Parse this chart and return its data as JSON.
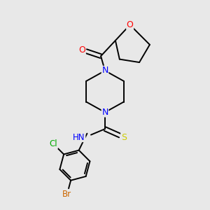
{
  "bg_color": "#e8e8e8",
  "atom_colors": {
    "O": "#ff0000",
    "N": "#0000ff",
    "S": "#cccc00",
    "Cl": "#00aa00",
    "Br": "#cc6600",
    "C": "#000000"
  },
  "font_size": 8.5,
  "lw": 1.4
}
